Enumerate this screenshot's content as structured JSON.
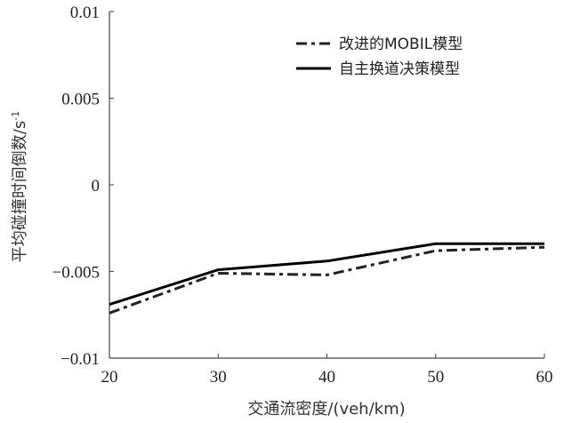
{
  "chart_data": {
    "type": "line",
    "title": "",
    "xlabel": "交通流密度/(veh/km)",
    "ylabel": "平均碰撞时间倒数/s",
    "ylabel_superscript": "-1",
    "x": [
      20,
      30,
      40,
      50,
      60
    ],
    "xlim": [
      20,
      60
    ],
    "ylim": [
      -0.01,
      0.01
    ],
    "xticks": [
      "20",
      "30",
      "40",
      "50",
      "60"
    ],
    "yticks": [
      "0.01",
      "0.005",
      "0",
      "−0.005",
      "−0.01"
    ],
    "ytick_values": [
      0.01,
      0.005,
      0,
      -0.005,
      -0.01
    ],
    "grid": false,
    "legend_position": "top-right",
    "series": [
      {
        "name": "改进的MOBIL模型",
        "style": "dashdot",
        "color": "#222222",
        "values": [
          -0.0074,
          -0.0051,
          -0.0052,
          -0.0038,
          -0.0036
        ]
      },
      {
        "name": "自主换道决策模型",
        "style": "solid",
        "color": "#000000",
        "values": [
          -0.0069,
          -0.0049,
          -0.0044,
          -0.0034,
          -0.0034
        ]
      }
    ]
  }
}
